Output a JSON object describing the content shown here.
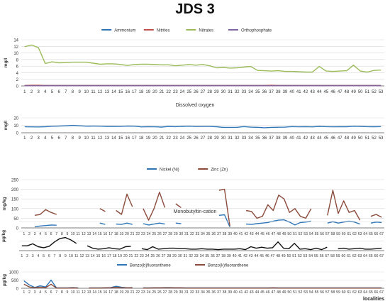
{
  "title": "JDS 3",
  "x_axis_label": "localities",
  "colors": {
    "ammonium": "#2E75B6",
    "nitrites": "#C0504D",
    "nitrates": "#9BBB59",
    "orthophosphate": "#8064A2",
    "oxygen": "#2E75B6",
    "nickel": "#2E75B6",
    "zinc": "#8B4A3A",
    "mbt": "#111111",
    "bbf": "#2E75B6",
    "bkf": "#8B4A3A",
    "grid": "#D9D9D9",
    "axis": "#595959"
  },
  "chart_data": [
    {
      "type": "line",
      "title": "",
      "ylabel": "mg/l",
      "ylim": [
        0,
        14
      ],
      "yticks": [
        0,
        2,
        4,
        6,
        8,
        10,
        12,
        14
      ],
      "grid": true,
      "legend": "top",
      "x": [
        1,
        2,
        3,
        4,
        5,
        6,
        7,
        8,
        9,
        10,
        11,
        12,
        13,
        14,
        15,
        16,
        17,
        18,
        19,
        20,
        21,
        22,
        23,
        24,
        25,
        26,
        27,
        28,
        29,
        30,
        31,
        32,
        33,
        34,
        35,
        36,
        37,
        38,
        39,
        40,
        41,
        42,
        43,
        44,
        45,
        46,
        47,
        48,
        49,
        50,
        51,
        52,
        53
      ],
      "series": [
        {
          "name": "Ammonium",
          "color": "#2E75B6",
          "values": [
            0.1,
            0.1,
            0.1,
            0.1,
            0.1,
            0.1,
            0.1,
            0.1,
            0.1,
            0.1,
            0.1,
            0.1,
            0.1,
            0.1,
            0.1,
            0.1,
            0.1,
            0.1,
            0.1,
            0.1,
            0.1,
            0.1,
            0.1,
            0.1,
            0.1,
            0.1,
            0.1,
            0.1,
            0.1,
            0.1,
            0.1,
            0.1,
            0.1,
            0.1,
            0.1,
            0.1,
            0.1,
            0.1,
            0.1,
            0.1,
            0.1,
            0.1,
            0.1,
            0.1,
            0.1,
            0.1,
            0.1,
            0.1,
            0.1,
            0.1,
            0.1,
            0.1,
            0.1
          ]
        },
        {
          "name": "Nitrites",
          "color": "#C0504D",
          "values": [
            0.1,
            0.2,
            0.2,
            0.1,
            0.1,
            0.1,
            0.1,
            0.1,
            0.1,
            0.1,
            0.1,
            0.1,
            0.1,
            0.1,
            0.1,
            0.1,
            0.1,
            0.1,
            0.1,
            0.1,
            0.1,
            0.1,
            0.1,
            0.1,
            0.1,
            0.1,
            0.1,
            0.1,
            0.1,
            0.1,
            0.1,
            0.1,
            0.1,
            0.1,
            0.1,
            0.1,
            0.2,
            0.1,
            0.1,
            0.1,
            0.1,
            0.1,
            0.1,
            0.1,
            0.1,
            0.1,
            0.1,
            0.1,
            0.1,
            0.1,
            0.1,
            0.1,
            0.1
          ]
        },
        {
          "name": "Nitrates",
          "color": "#9BBB59",
          "values": [
            11.9,
            12.4,
            11.6,
            6.8,
            7.3,
            7.0,
            7.1,
            7.2,
            7.2,
            7.2,
            6.9,
            6.6,
            6.7,
            6.7,
            6.5,
            6.2,
            6.5,
            6.6,
            6.6,
            6.5,
            6.4,
            6.4,
            6.1,
            6.3,
            6.5,
            6.3,
            6.5,
            6.1,
            5.5,
            5.6,
            5.4,
            5.5,
            5.7,
            5.9,
            4.7,
            4.6,
            4.5,
            4.6,
            4.4,
            4.4,
            4.3,
            4.2,
            4.2,
            5.9,
            4.5,
            4.4,
            4.5,
            4.6,
            6.3,
            4.5,
            4.2,
            4.7,
            4.8
          ]
        },
        {
          "name": "Orthophosphate",
          "color": "#8064A2",
          "values": [
            0.05,
            0.05,
            0.05,
            0.05,
            0.05,
            0.05,
            0.05,
            0.05,
            0.05,
            0.05,
            0.05,
            0.05,
            0.05,
            0.05,
            0.05,
            0.05,
            0.05,
            0.05,
            0.05,
            0.05,
            0.05,
            0.05,
            0.05,
            0.05,
            0.05,
            0.05,
            0.05,
            0.05,
            0.05,
            0.05,
            0.05,
            0.05,
            0.05,
            0.05,
            0.05,
            0.05,
            0.05,
            0.05,
            0.05,
            0.05,
            0.05,
            0.05,
            0.05,
            0.05,
            0.05,
            0.05,
            0.05,
            0.05,
            0.05,
            0.05,
            0.05,
            0.05,
            0.05
          ]
        }
      ]
    },
    {
      "type": "line",
      "title": "Dissolved oxygen",
      "ylabel": "mg/l",
      "ylim": [
        0,
        20
      ],
      "yticks": [
        0,
        10,
        20
      ],
      "grid": true,
      "legend": "none",
      "x": [
        1,
        2,
        3,
        4,
        5,
        6,
        7,
        8,
        9,
        10,
        11,
        12,
        13,
        14,
        15,
        16,
        17,
        18,
        19,
        20,
        21,
        22,
        23,
        24,
        25,
        26,
        27,
        28,
        29,
        30,
        31,
        32,
        33,
        34,
        35,
        36,
        37,
        38,
        39,
        40,
        41,
        42,
        43,
        44,
        45,
        46,
        47,
        48,
        49,
        50,
        51,
        52,
        53
      ],
      "series": [
        {
          "name": "",
          "color": "#2E75B6",
          "values": [
            8.0,
            7.9,
            7.8,
            8.1,
            8.8,
            9.0,
            9.3,
            9.9,
            9.3,
            8.9,
            9.0,
            8.9,
            8.6,
            8.7,
            8.5,
            9.0,
            8.9,
            7.9,
            8.1,
            8.0,
            7.6,
            8.6,
            8.2,
            8.6,
            8.9,
            8.4,
            8.5,
            8.5,
            8.1,
            7.2,
            7.2,
            7.3,
            8.3,
            7.5,
            7.3,
            6.8,
            7.2,
            7.4,
            7.5,
            8.3,
            8.0,
            8.2,
            7.9,
            8.6,
            8.2,
            8.0,
            8.2,
            8.1,
            8.8,
            8.6,
            8.2,
            8.1,
            8.3
          ]
        }
      ]
    },
    {
      "type": "line",
      "title": "",
      "ylabel": "mg/kg",
      "ylim": [
        0,
        250
      ],
      "yticks": [
        0,
        50,
        100,
        150,
        200,
        250
      ],
      "grid": true,
      "legend": "top",
      "x": [
        1,
        2,
        3,
        4,
        5,
        6,
        7,
        8,
        9,
        10,
        11,
        12,
        13,
        14,
        15,
        16,
        17,
        18,
        19,
        20,
        21,
        22,
        23,
        24,
        25,
        26,
        27,
        28,
        29,
        30,
        31,
        32,
        33,
        34,
        35,
        36,
        37,
        38,
        39,
        40,
        41,
        42,
        43,
        44,
        45,
        46,
        47,
        48,
        49,
        50,
        51,
        52,
        53,
        54,
        55,
        56,
        57,
        58,
        59,
        60,
        61,
        62,
        63,
        64,
        65,
        66,
        67
      ],
      "series": [
        {
          "name": "Nickel (Ni)",
          "color": "#2E75B6",
          "values": [
            null,
            null,
            5,
            10,
            12,
            15,
            14,
            null,
            null,
            null,
            null,
            null,
            null,
            null,
            25,
            18,
            null,
            20,
            18,
            25,
            18,
            null,
            22,
            15,
            20,
            25,
            20,
            null,
            25,
            22,
            null,
            null,
            null,
            null,
            null,
            null,
            65,
            68,
            5,
            null,
            null,
            20,
            18,
            22,
            25,
            28,
            35,
            40,
            42,
            30,
            15,
            28,
            30,
            35,
            null,
            null,
            25,
            32,
            25,
            30,
            35,
            30,
            20,
            null,
            25,
            30,
            28
          ]
        },
        {
          "name": "Zinc (Zn)",
          "color": "#8B4A3A",
          "values": [
            null,
            null,
            65,
            70,
            95,
            80,
            70,
            null,
            null,
            null,
            null,
            null,
            null,
            null,
            100,
            85,
            null,
            90,
            70,
            175,
            110,
            null,
            100,
            40,
            100,
            185,
            105,
            null,
            125,
            105,
            null,
            null,
            null,
            null,
            null,
            null,
            195,
            200,
            10,
            null,
            null,
            90,
            85,
            50,
            60,
            120,
            90,
            170,
            150,
            80,
            100,
            60,
            50,
            100,
            null,
            null,
            65,
            195,
            75,
            140,
            80,
            90,
            40,
            null,
            60,
            70,
            55
          ]
        }
      ]
    },
    {
      "type": "line",
      "title": "Monobutyltin-cation",
      "ylabel": "µg/kg",
      "ylim": [
        0,
        60
      ],
      "yticks": [],
      "grid": true,
      "legend": "none",
      "x": [
        1,
        2,
        3,
        4,
        5,
        6,
        7,
        8,
        9,
        10,
        11,
        12,
        13,
        14,
        15,
        16,
        17,
        18,
        19,
        20,
        21,
        22,
        23,
        24,
        25,
        26,
        27,
        28,
        29,
        30,
        31,
        32,
        33,
        34,
        35,
        36,
        37,
        38,
        39,
        40,
        41,
        42,
        43,
        44,
        45,
        46,
        47,
        48,
        49,
        50,
        51,
        52,
        53,
        54,
        55,
        56,
        57,
        58,
        59,
        60,
        61,
        62,
        63,
        64,
        65,
        66,
        67
      ],
      "series": [
        {
          "name": "",
          "color": "#111111",
          "values": [
            10,
            10,
            14,
            8,
            6,
            9,
            18,
            25,
            27,
            22,
            15,
            null,
            10,
            5,
            3,
            4,
            6,
            4,
            3,
            8,
            9,
            null,
            4,
            2,
            8,
            3,
            4,
            5,
            5,
            4,
            4,
            3,
            3,
            4,
            3,
            3,
            2,
            3,
            3,
            3,
            4,
            2,
            8,
            5,
            7,
            5,
            6,
            18,
            5,
            4,
            15,
            3,
            4,
            2,
            5,
            2,
            7,
            null,
            4,
            5,
            3,
            4,
            5,
            3,
            3,
            4,
            5
          ]
        }
      ]
    },
    {
      "type": "line",
      "title": "",
      "ylabel": "µg/kg",
      "ylim": [
        0,
        1000
      ],
      "yticks": [
        0,
        500,
        1000
      ],
      "grid": true,
      "legend": "top",
      "x": [
        1,
        2,
        3,
        4,
        5,
        6,
        7,
        8,
        9,
        10,
        11,
        12,
        13,
        14,
        15,
        16,
        17,
        18,
        19,
        20,
        21,
        22,
        23,
        24,
        25,
        26,
        27,
        28,
        29,
        30,
        31,
        32,
        33,
        34,
        35,
        36,
        37,
        38,
        39,
        40,
        41,
        42,
        43,
        44,
        45,
        46,
        47,
        48,
        49,
        50,
        51,
        52,
        53,
        54,
        55,
        56,
        57,
        58,
        59,
        60,
        61,
        62,
        63,
        64,
        65,
        66,
        67
      ],
      "series": [
        {
          "name": "Benzo(b)fluoranthene",
          "color": "#2E75B6",
          "values": [
            450,
            200,
            50,
            150,
            80,
            500,
            20,
            20,
            20,
            40,
            20,
            null,
            20,
            20,
            20,
            30,
            40,
            120,
            60,
            30,
            40,
            null,
            20,
            20,
            30,
            30,
            40,
            40,
            30,
            30,
            20,
            20,
            20,
            20,
            20,
            20,
            20,
            20,
            20,
            20,
            20,
            20,
            20,
            20,
            20,
            20,
            30,
            20,
            20,
            20,
            20,
            20,
            20,
            20,
            20,
            20,
            20,
            20,
            20,
            20,
            20,
            20,
            20,
            20,
            20,
            20,
            20
          ]
        },
        {
          "name": "Benzo(k)fluoranthene",
          "color": "#8B4A3A",
          "values": [
            250,
            80,
            30,
            70,
            40,
            250,
            10,
            10,
            10,
            20,
            10,
            null,
            10,
            10,
            10,
            20,
            20,
            60,
            30,
            20,
            20,
            null,
            10,
            10,
            20,
            20,
            20,
            20,
            20,
            20,
            10,
            10,
            10,
            10,
            10,
            10,
            10,
            10,
            10,
            10,
            10,
            10,
            10,
            10,
            10,
            10,
            20,
            10,
            10,
            10,
            10,
            10,
            10,
            10,
            10,
            10,
            10,
            10,
            10,
            10,
            10,
            10,
            10,
            10,
            10,
            10,
            10
          ]
        }
      ]
    }
  ]
}
